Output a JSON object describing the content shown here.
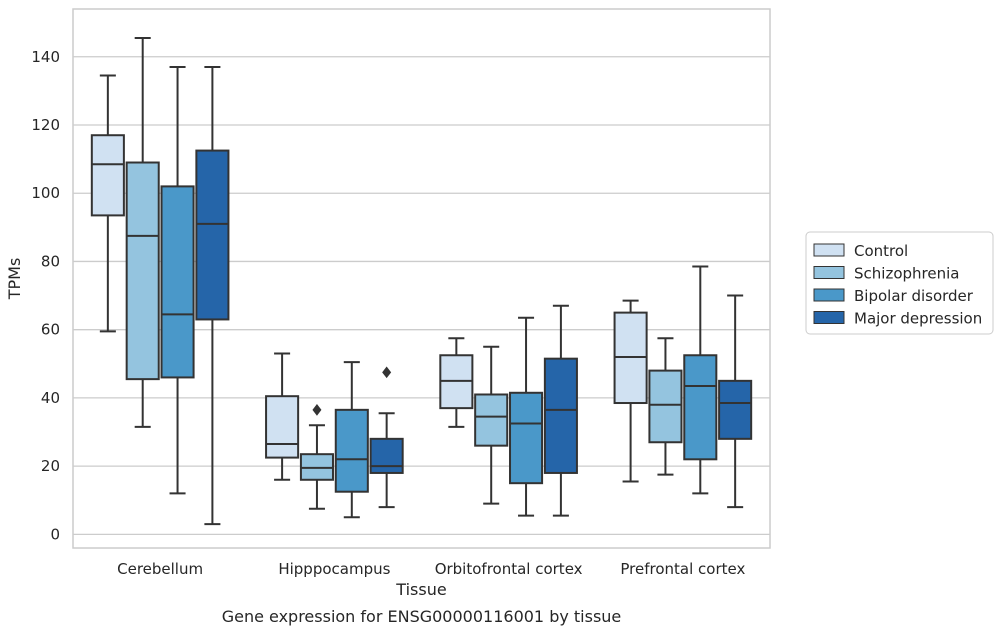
{
  "chart_data": {
    "type": "box",
    "caption": "Gene expression for ENSG00000116001 by tissue",
    "xlabel": "Tissue",
    "ylabel": "TPMs",
    "ylim": [
      -4,
      154
    ],
    "yticks": [
      0,
      20,
      40,
      60,
      80,
      100,
      120,
      140
    ],
    "grid": "horizontal",
    "legend_position": "right",
    "categories": [
      "Cerebellum",
      "Hipppocampus",
      "Orbitofrontal cortex",
      "Prefrontal cortex"
    ],
    "series": [
      {
        "name": "Control",
        "color": "#d0e1f2",
        "boxes": [
          {
            "whislo": 59.5,
            "q1": 93.5,
            "med": 108.5,
            "q3": 117,
            "whishi": 134.5,
            "fliers": []
          },
          {
            "whislo": 16,
            "q1": 22.5,
            "med": 26.5,
            "q3": 40.5,
            "whishi": 53,
            "fliers": []
          },
          {
            "whislo": 31.5,
            "q1": 37,
            "med": 45,
            "q3": 52.5,
            "whishi": 57.5,
            "fliers": []
          },
          {
            "whislo": 15.5,
            "q1": 38.5,
            "med": 52,
            "q3": 65,
            "whishi": 68.5,
            "fliers": []
          }
        ]
      },
      {
        "name": "Schizophrenia",
        "color": "#94c4df",
        "boxes": [
          {
            "whislo": 31.5,
            "q1": 45.5,
            "med": 87.5,
            "q3": 109,
            "whishi": 145.5,
            "fliers": []
          },
          {
            "whislo": 7.5,
            "q1": 16,
            "med": 19.5,
            "q3": 23.5,
            "whishi": 32,
            "fliers": [
              36.5
            ]
          },
          {
            "whislo": 9,
            "q1": 26,
            "med": 34.5,
            "q3": 41,
            "whishi": 55,
            "fliers": []
          },
          {
            "whislo": 17.5,
            "q1": 27,
            "med": 38,
            "q3": 48,
            "whishi": 57.5,
            "fliers": []
          }
        ]
      },
      {
        "name": "Bipolar disorder",
        "color": "#4a98c9",
        "boxes": [
          {
            "whislo": 12,
            "q1": 46,
            "med": 64.5,
            "q3": 102,
            "whishi": 137,
            "fliers": []
          },
          {
            "whislo": 5,
            "q1": 12.5,
            "med": 22,
            "q3": 36.5,
            "whishi": 50.5,
            "fliers": []
          },
          {
            "whislo": 5.5,
            "q1": 15,
            "med": 32.5,
            "q3": 41.5,
            "whishi": 63.5,
            "fliers": []
          },
          {
            "whislo": 12,
            "q1": 22,
            "med": 43.5,
            "q3": 52.5,
            "whishi": 78.5,
            "fliers": []
          }
        ]
      },
      {
        "name": "Major depression",
        "color": "#2565a9",
        "boxes": [
          {
            "whislo": 3,
            "q1": 63,
            "med": 91,
            "q3": 112.5,
            "whishi": 137,
            "fliers": []
          },
          {
            "whislo": 8,
            "q1": 18,
            "med": 20,
            "q3": 28,
            "whishi": 35.5,
            "fliers": [
              47.5
            ]
          },
          {
            "whislo": 5.5,
            "q1": 18,
            "med": 36.5,
            "q3": 51.5,
            "whishi": 67,
            "fliers": []
          },
          {
            "whislo": 8,
            "q1": 28,
            "med": 38.5,
            "q3": 45,
            "whishi": 70,
            "fliers": []
          }
        ]
      }
    ]
  }
}
